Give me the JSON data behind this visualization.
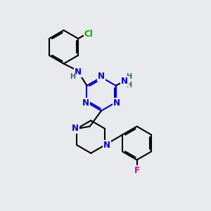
{
  "bg_color": "#e8eaed",
  "bond_color": "#000000",
  "atom_colors": {
    "N": "#0000cc",
    "Cl": "#00aa00",
    "F": "#cc00aa",
    "H": "#336666",
    "C": "#000000"
  },
  "line_width": 1.5,
  "font_size_atom": 8.5,
  "font_size_small": 7.0
}
